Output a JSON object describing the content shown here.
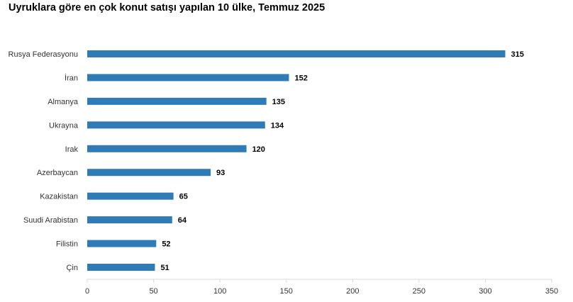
{
  "chart_data": {
    "type": "bar",
    "orientation": "horizontal",
    "title": "Uyruklara göre en çok konut satışı yapılan 10 ülke, Temmuz 2025",
    "categories": [
      "Rusya Federasyonu",
      "İran",
      "Almanya",
      "Ukrayna",
      "Irak",
      "Azerbaycan",
      "Kazakistan",
      "Suudi Arabistan",
      "Filistin",
      "Çin"
    ],
    "values": [
      315,
      152,
      135,
      134,
      120,
      93,
      65,
      64,
      52,
      51
    ],
    "data_labels": [
      "315",
      "152",
      "135",
      "134",
      "120",
      "93",
      "65",
      "64",
      "52",
      "51"
    ],
    "xlim": [
      0,
      350
    ],
    "xticks": [
      "0",
      "50",
      "100",
      "150",
      "200",
      "250",
      "300",
      "350"
    ],
    "xlabel": "",
    "ylabel": "",
    "bar_color": "#2e7bb6",
    "grid": false,
    "legend": "none"
  }
}
